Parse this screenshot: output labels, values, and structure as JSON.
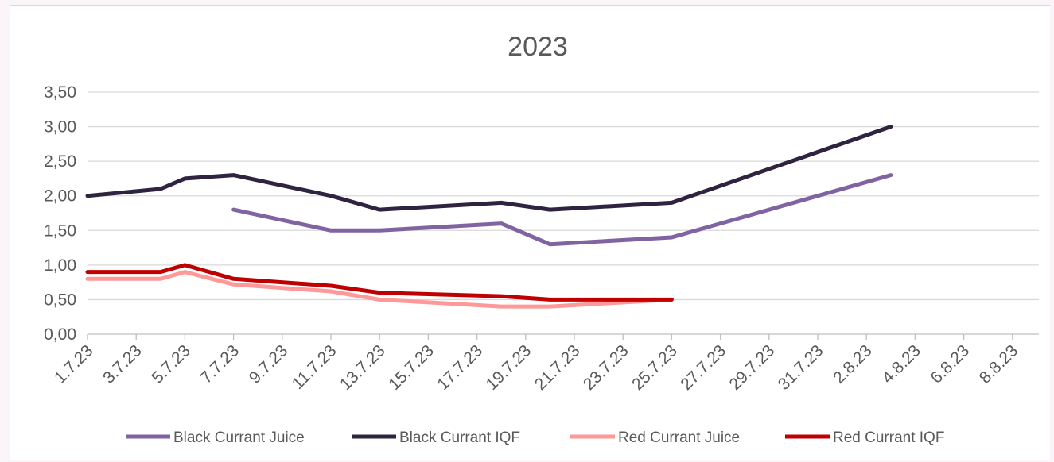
{
  "chart_data": {
    "type": "line",
    "title": "2023",
    "xlabel": "",
    "ylabel": "",
    "x_ticks": [
      "1.7.23",
      "3.7.23",
      "5.7.23",
      "7.7.23",
      "9.7.23",
      "11.7.23",
      "13.7.23",
      "15.7.23",
      "17.7.23",
      "19.7.23",
      "21.7.23",
      "23.7.23",
      "25.7.23",
      "27.7.23",
      "29.7.23",
      "31.7.23",
      "2.8.23",
      "4.8.23",
      "6.8.23",
      "8.8.23"
    ],
    "y_ticks": [
      "0,00",
      "0,50",
      "1,00",
      "1,50",
      "2,00",
      "2,50",
      "3,00",
      "3,50"
    ],
    "ylim": [
      0,
      3.5
    ],
    "xlim": [
      "2023-07-01",
      "2023-08-09"
    ],
    "grid": true,
    "legend_position": "bottom",
    "series": [
      {
        "name": "Black Currant Juice",
        "color": "#8064a2",
        "points": [
          {
            "x": "2023-07-07",
            "y": 1.8
          },
          {
            "x": "2023-07-11",
            "y": 1.5
          },
          {
            "x": "2023-07-13",
            "y": 1.5
          },
          {
            "x": "2023-07-18",
            "y": 1.6
          },
          {
            "x": "2023-07-20",
            "y": 1.3
          },
          {
            "x": "2023-07-25",
            "y": 1.4
          },
          {
            "x": "2023-08-03",
            "y": 2.3
          }
        ]
      },
      {
        "name": "Black Currant IQF",
        "color": "#2e2440",
        "points": [
          {
            "x": "2023-07-01",
            "y": 2.0
          },
          {
            "x": "2023-07-04",
            "y": 2.1
          },
          {
            "x": "2023-07-05",
            "y": 2.25
          },
          {
            "x": "2023-07-07",
            "y": 2.3
          },
          {
            "x": "2023-07-11",
            "y": 2.0
          },
          {
            "x": "2023-07-13",
            "y": 1.8
          },
          {
            "x": "2023-07-18",
            "y": 1.9
          },
          {
            "x": "2023-07-20",
            "y": 1.8
          },
          {
            "x": "2023-07-25",
            "y": 1.9
          },
          {
            "x": "2023-08-03",
            "y": 3.0
          }
        ]
      },
      {
        "name": "Red Currant Juice",
        "color": "#ff9999",
        "points": [
          {
            "x": "2023-07-01",
            "y": 0.8
          },
          {
            "x": "2023-07-04",
            "y": 0.8
          },
          {
            "x": "2023-07-05",
            "y": 0.9
          },
          {
            "x": "2023-07-07",
            "y": 0.72
          },
          {
            "x": "2023-07-11",
            "y": 0.62
          },
          {
            "x": "2023-07-13",
            "y": 0.5
          },
          {
            "x": "2023-07-18",
            "y": 0.4
          },
          {
            "x": "2023-07-20",
            "y": 0.4
          },
          {
            "x": "2023-07-25",
            "y": 0.5
          }
        ]
      },
      {
        "name": "Red Currant IQF",
        "color": "#c00000",
        "points": [
          {
            "x": "2023-07-01",
            "y": 0.9
          },
          {
            "x": "2023-07-04",
            "y": 0.9
          },
          {
            "x": "2023-07-05",
            "y": 1.0
          },
          {
            "x": "2023-07-07",
            "y": 0.8
          },
          {
            "x": "2023-07-11",
            "y": 0.7
          },
          {
            "x": "2023-07-13",
            "y": 0.6
          },
          {
            "x": "2023-07-18",
            "y": 0.55
          },
          {
            "x": "2023-07-20",
            "y": 0.5
          },
          {
            "x": "2023-07-25",
            "y": 0.5
          }
        ]
      }
    ]
  }
}
